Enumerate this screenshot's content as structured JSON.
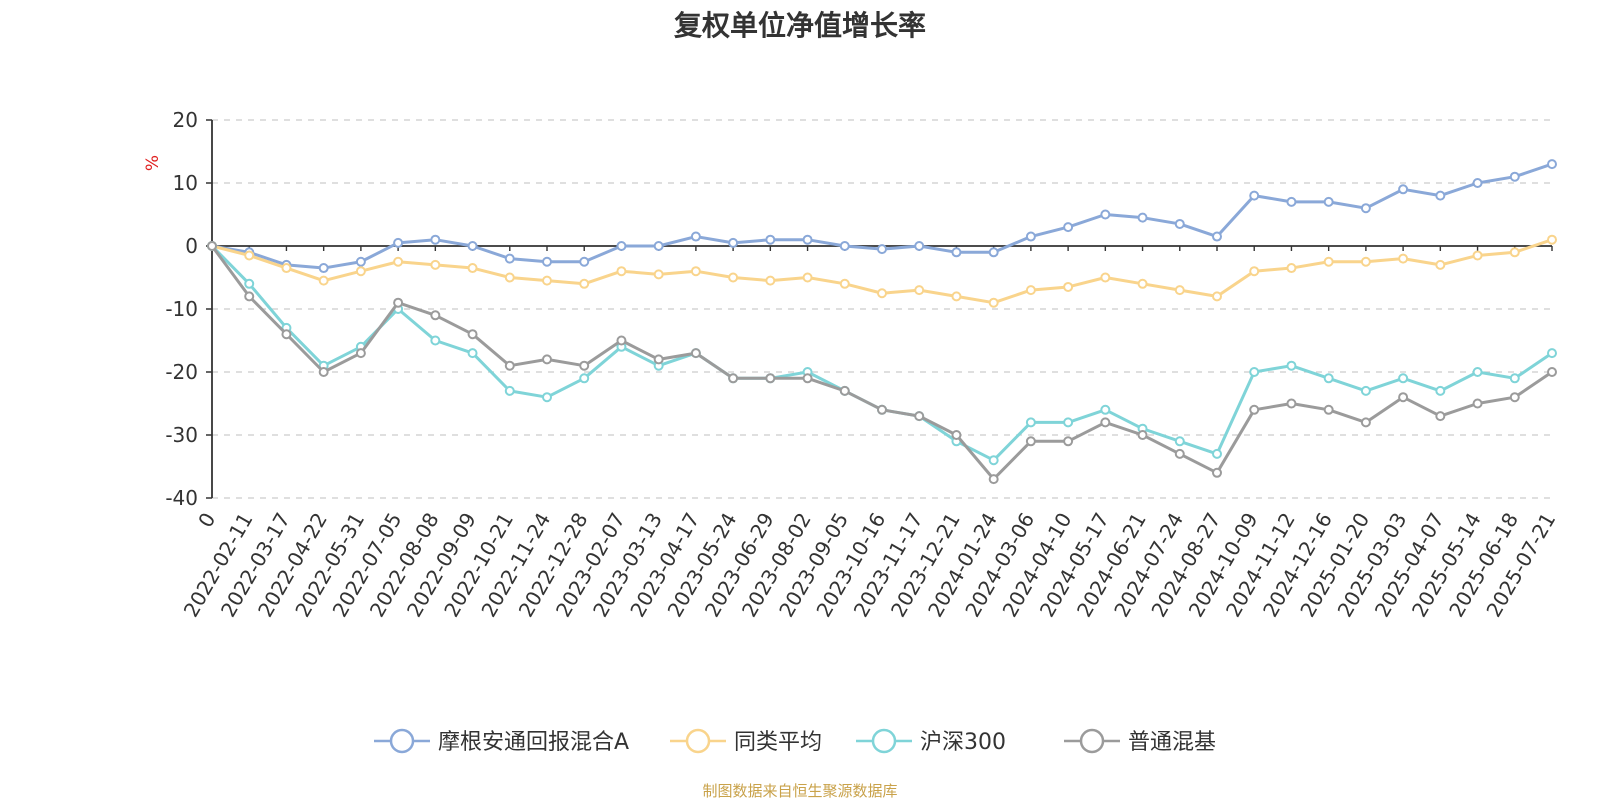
{
  "chart_data": {
    "type": "line",
    "title": "复权单位净值增长率",
    "ylabel": "%",
    "ylim": [
      -40,
      20
    ],
    "yticks": [
      20,
      10,
      0,
      -10,
      -20,
      -30,
      -40
    ],
    "xlabels": [
      "0",
      "2022-02-11",
      "2022-03-17",
      "2022-04-22",
      "2022-05-31",
      "2022-07-05",
      "2022-08-08",
      "2022-09-09",
      "2022-10-21",
      "2022-11-24",
      "2022-12-28",
      "2023-02-07",
      "2023-03-13",
      "2023-04-17",
      "2023-05-24",
      "2023-06-29",
      "2023-08-02",
      "2023-09-05",
      "2023-10-16",
      "2023-11-17",
      "2023-12-21",
      "2024-01-24",
      "2024-03-06",
      "2024-04-10",
      "2024-05-17",
      "2024-06-21",
      "2024-07-24",
      "2024-08-27",
      "2024-10-09",
      "2024-11-12",
      "2024-12-16",
      "2025-01-20",
      "2025-03-03",
      "2025-04-07",
      "2025-05-14",
      "2025-06-18",
      "2025-07-21"
    ],
    "grid": "horizontal-dashed",
    "legend_position": "bottom",
    "series": [
      {
        "name": "摩根安通回报混合A",
        "color": "#8aa8d8",
        "values": [
          0,
          -1,
          -3,
          -3.5,
          -2.5,
          0.5,
          1,
          0,
          -2,
          -2.5,
          -2.5,
          0,
          0,
          1.5,
          0.5,
          1,
          1,
          0,
          -0.5,
          0,
          -1,
          -1,
          1.5,
          3,
          5,
          4.5,
          3.5,
          1.5,
          8,
          7,
          7,
          6,
          9,
          8,
          10,
          11,
          13
        ]
      },
      {
        "name": "同类平均",
        "color": "#f9d48c",
        "values": [
          0,
          -1.5,
          -3.5,
          -5.5,
          -4,
          -2.5,
          -3,
          -3.5,
          -5,
          -5.5,
          -6,
          -4,
          -4.5,
          -4,
          -5,
          -5.5,
          -5,
          -6,
          -7.5,
          -7,
          -8,
          -9,
          -7,
          -6.5,
          -5,
          -6,
          -7,
          -8,
          -4,
          -3.5,
          -2.5,
          -2.5,
          -2,
          -3,
          -1.5,
          -1,
          1
        ]
      },
      {
        "name": "沪深300",
        "color": "#7fd4d8",
        "values": [
          0,
          -6,
          -13,
          -19,
          -16,
          -10,
          -15,
          -17,
          -23,
          -24,
          -21,
          -16,
          -19,
          -17,
          -21,
          -21,
          -20,
          -23,
          -26,
          -27,
          -31,
          -34,
          -28,
          -28,
          -26,
          -29,
          -31,
          -33,
          -20,
          -19,
          -21,
          -23,
          -21,
          -23,
          -20,
          -21,
          -17
        ]
      },
      {
        "name": "普通混基",
        "color": "#9b9b9b",
        "values": [
          0,
          -8,
          -14,
          -20,
          -17,
          -9,
          -11,
          -14,
          -19,
          -18,
          -19,
          -15,
          -18,
          -17,
          -21,
          -21,
          -21,
          -23,
          -26,
          -27,
          -30,
          -37,
          -31,
          -31,
          -28,
          -30,
          -33,
          -36,
          -26,
          -25,
          -26,
          -28,
          -24,
          -27,
          -25,
          -24,
          -20
        ]
      }
    ]
  },
  "footer": "制图数据来自恒生聚源数据库"
}
